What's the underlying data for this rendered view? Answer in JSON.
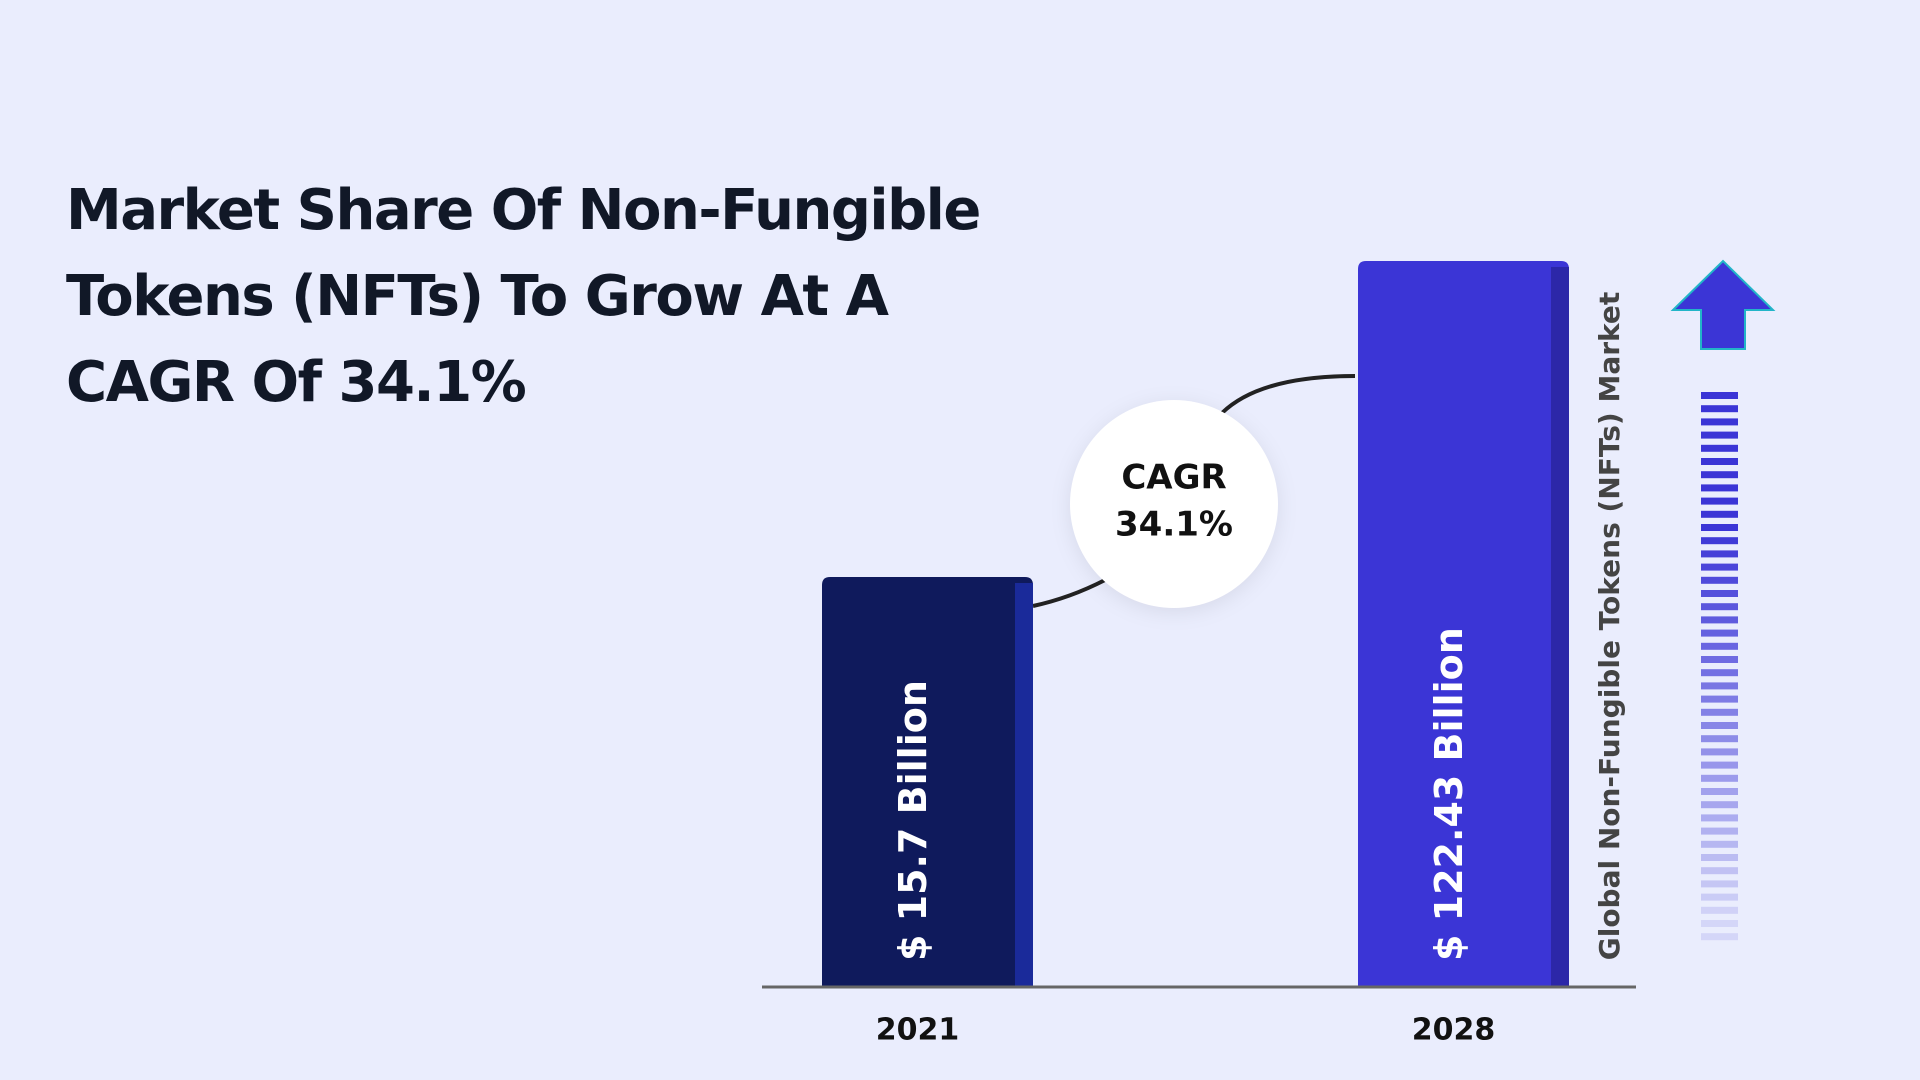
{
  "chart_data": {
    "type": "bar",
    "title": "Market Share Of Non-Fungible Tokens (NFTs) To Grow At A CAGR Of 34.1%",
    "y_label": "Global Non-Fungible Tokens (NFTs) Market",
    "categories": [
      "2021",
      "2028"
    ],
    "values": [
      15.7,
      122.43
    ],
    "value_labels": [
      "$ 15.7 Billion",
      "$ 122.43 Billion"
    ],
    "colors": [
      "#0f1a5c",
      "#3b35d6"
    ],
    "annotation": {
      "label": "CAGR",
      "value": "34.1%"
    }
  }
}
